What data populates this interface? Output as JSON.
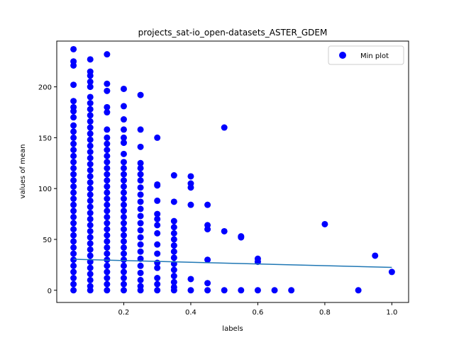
{
  "chart_data": {
    "type": "scatter",
    "title": "projects_sat-io_open-datasets_ASTER_GDEM",
    "xlabel": "labels",
    "ylabel": "values of mean",
    "xlim": [
      0.0,
      1.05
    ],
    "ylim": [
      -12,
      245
    ],
    "xticks": [
      0.2,
      0.4,
      0.6,
      0.8,
      1.0
    ],
    "xtick_labels": [
      "0.2",
      "0.4",
      "0.6",
      "0.8",
      "1.0"
    ],
    "yticks": [
      0,
      50,
      100,
      150,
      200
    ],
    "ytick_labels": [
      "0",
      "50",
      "100",
      "150",
      "200"
    ],
    "grid": false,
    "legend": {
      "position": "top-right",
      "entries": [
        "Min plot"
      ]
    },
    "colors": {
      "points": "#0000ff",
      "trend": "#1f77b4"
    },
    "series": [
      {
        "name": "Min plot",
        "kind": "scatter",
        "points": [
          [
            0.05,
            237
          ],
          [
            0.05,
            225
          ],
          [
            0.05,
            221
          ],
          [
            0.05,
            202
          ],
          [
            0.05,
            186
          ],
          [
            0.05,
            180
          ],
          [
            0.05,
            176
          ],
          [
            0.05,
            170
          ],
          [
            0.05,
            162
          ],
          [
            0.05,
            156
          ],
          [
            0.05,
            150
          ],
          [
            0.05,
            144
          ],
          [
            0.05,
            138
          ],
          [
            0.05,
            132
          ],
          [
            0.05,
            126
          ],
          [
            0.05,
            120
          ],
          [
            0.05,
            114
          ],
          [
            0.05,
            108
          ],
          [
            0.05,
            102
          ],
          [
            0.05,
            96
          ],
          [
            0.05,
            90
          ],
          [
            0.05,
            84
          ],
          [
            0.05,
            78
          ],
          [
            0.05,
            72
          ],
          [
            0.05,
            66
          ],
          [
            0.05,
            60
          ],
          [
            0.05,
            54
          ],
          [
            0.05,
            48
          ],
          [
            0.05,
            42
          ],
          [
            0.05,
            36
          ],
          [
            0.05,
            30
          ],
          [
            0.05,
            24
          ],
          [
            0.05,
            18
          ],
          [
            0.05,
            12
          ],
          [
            0.05,
            6
          ],
          [
            0.05,
            0
          ],
          [
            0.1,
            227
          ],
          [
            0.1,
            215
          ],
          [
            0.1,
            211
          ],
          [
            0.1,
            205
          ],
          [
            0.1,
            200
          ],
          [
            0.1,
            190
          ],
          [
            0.1,
            184
          ],
          [
            0.1,
            178
          ],
          [
            0.1,
            172
          ],
          [
            0.1,
            166
          ],
          [
            0.1,
            160
          ],
          [
            0.1,
            154
          ],
          [
            0.1,
            148
          ],
          [
            0.1,
            142
          ],
          [
            0.1,
            136
          ],
          [
            0.1,
            130
          ],
          [
            0.1,
            124
          ],
          [
            0.1,
            118
          ],
          [
            0.1,
            112
          ],
          [
            0.1,
            106
          ],
          [
            0.1,
            100
          ],
          [
            0.1,
            94
          ],
          [
            0.1,
            88
          ],
          [
            0.1,
            82
          ],
          [
            0.1,
            76
          ],
          [
            0.1,
            70
          ],
          [
            0.1,
            64
          ],
          [
            0.1,
            58
          ],
          [
            0.1,
            52
          ],
          [
            0.1,
            46
          ],
          [
            0.1,
            40
          ],
          [
            0.1,
            34
          ],
          [
            0.1,
            28
          ],
          [
            0.1,
            22
          ],
          [
            0.1,
            16
          ],
          [
            0.1,
            10
          ],
          [
            0.1,
            4
          ],
          [
            0.1,
            0
          ],
          [
            0.15,
            232
          ],
          [
            0.15,
            203
          ],
          [
            0.15,
            196
          ],
          [
            0.15,
            180
          ],
          [
            0.15,
            175
          ],
          [
            0.15,
            158
          ],
          [
            0.15,
            150
          ],
          [
            0.15,
            144
          ],
          [
            0.15,
            138
          ],
          [
            0.15,
            132
          ],
          [
            0.15,
            126
          ],
          [
            0.15,
            120
          ],
          [
            0.15,
            114
          ],
          [
            0.15,
            108
          ],
          [
            0.15,
            102
          ],
          [
            0.15,
            96
          ],
          [
            0.15,
            90
          ],
          [
            0.15,
            84
          ],
          [
            0.15,
            78
          ],
          [
            0.15,
            72
          ],
          [
            0.15,
            66
          ],
          [
            0.15,
            60
          ],
          [
            0.15,
            54
          ],
          [
            0.15,
            48
          ],
          [
            0.15,
            42
          ],
          [
            0.15,
            36
          ],
          [
            0.15,
            30
          ],
          [
            0.15,
            24
          ],
          [
            0.15,
            18
          ],
          [
            0.15,
            12
          ],
          [
            0.15,
            6
          ],
          [
            0.15,
            0
          ],
          [
            0.2,
            198
          ],
          [
            0.2,
            181
          ],
          [
            0.2,
            168
          ],
          [
            0.2,
            158
          ],
          [
            0.2,
            150
          ],
          [
            0.2,
            145
          ],
          [
            0.2,
            134
          ],
          [
            0.2,
            126
          ],
          [
            0.2,
            120
          ],
          [
            0.2,
            114
          ],
          [
            0.2,
            108
          ],
          [
            0.2,
            102
          ],
          [
            0.2,
            96
          ],
          [
            0.2,
            90
          ],
          [
            0.2,
            84
          ],
          [
            0.2,
            78
          ],
          [
            0.2,
            72
          ],
          [
            0.2,
            66
          ],
          [
            0.2,
            60
          ],
          [
            0.2,
            54
          ],
          [
            0.2,
            48
          ],
          [
            0.2,
            42
          ],
          [
            0.2,
            36
          ],
          [
            0.2,
            30
          ],
          [
            0.2,
            24
          ],
          [
            0.2,
            18
          ],
          [
            0.2,
            12
          ],
          [
            0.2,
            6
          ],
          [
            0.2,
            0
          ],
          [
            0.25,
            192
          ],
          [
            0.25,
            158
          ],
          [
            0.25,
            141
          ],
          [
            0.25,
            125
          ],
          [
            0.25,
            120
          ],
          [
            0.25,
            114
          ],
          [
            0.25,
            108
          ],
          [
            0.25,
            101
          ],
          [
            0.25,
            94
          ],
          [
            0.25,
            87
          ],
          [
            0.25,
            80
          ],
          [
            0.25,
            73
          ],
          [
            0.25,
            66
          ],
          [
            0.25,
            59
          ],
          [
            0.25,
            52
          ],
          [
            0.25,
            45
          ],
          [
            0.25,
            38
          ],
          [
            0.25,
            31
          ],
          [
            0.25,
            24
          ],
          [
            0.25,
            17
          ],
          [
            0.25,
            10
          ],
          [
            0.25,
            4
          ],
          [
            0.25,
            0
          ],
          [
            0.3,
            150
          ],
          [
            0.3,
            104
          ],
          [
            0.3,
            103
          ],
          [
            0.3,
            88
          ],
          [
            0.3,
            75
          ],
          [
            0.3,
            70
          ],
          [
            0.3,
            64
          ],
          [
            0.3,
            56
          ],
          [
            0.3,
            45
          ],
          [
            0.3,
            36
          ],
          [
            0.3,
            27
          ],
          [
            0.3,
            22
          ],
          [
            0.3,
            12
          ],
          [
            0.3,
            6
          ],
          [
            0.3,
            0
          ],
          [
            0.35,
            113
          ],
          [
            0.35,
            87
          ],
          [
            0.35,
            68
          ],
          [
            0.35,
            62
          ],
          [
            0.35,
            56
          ],
          [
            0.35,
            50
          ],
          [
            0.35,
            44
          ],
          [
            0.35,
            38
          ],
          [
            0.35,
            32
          ],
          [
            0.35,
            26
          ],
          [
            0.35,
            20
          ],
          [
            0.35,
            14
          ],
          [
            0.35,
            8
          ],
          [
            0.35,
            3
          ],
          [
            0.35,
            0
          ],
          [
            0.4,
            112
          ],
          [
            0.4,
            105
          ],
          [
            0.4,
            101
          ],
          [
            0.4,
            84
          ],
          [
            0.4,
            11
          ],
          [
            0.4,
            0
          ],
          [
            0.45,
            84
          ],
          [
            0.45,
            64
          ],
          [
            0.45,
            60
          ],
          [
            0.45,
            30
          ],
          [
            0.45,
            7
          ],
          [
            0.45,
            0
          ],
          [
            0.5,
            160
          ],
          [
            0.5,
            58
          ],
          [
            0.5,
            0
          ],
          [
            0.55,
            53
          ],
          [
            0.55,
            52
          ],
          [
            0.55,
            0
          ],
          [
            0.6,
            31
          ],
          [
            0.6,
            28
          ],
          [
            0.6,
            0
          ],
          [
            0.65,
            0
          ],
          [
            0.7,
            0
          ],
          [
            0.8,
            65
          ],
          [
            0.9,
            0
          ],
          [
            0.95,
            34
          ],
          [
            1.0,
            18
          ]
        ]
      },
      {
        "name": "",
        "kind": "line",
        "x": [
          0.05,
          1.0
        ],
        "y": [
          30.5,
          22.5
        ]
      }
    ]
  }
}
